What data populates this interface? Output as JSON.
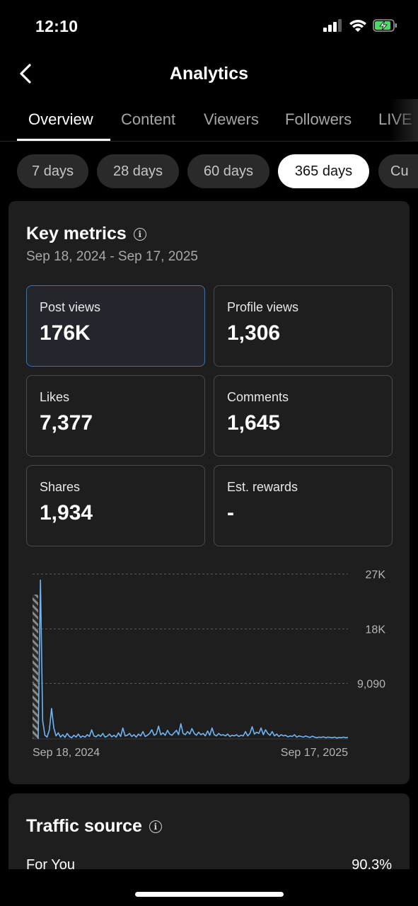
{
  "status_bar": {
    "time": "12:10"
  },
  "header": {
    "title": "Analytics"
  },
  "tabs": [
    {
      "label": "Overview",
      "active": true
    },
    {
      "label": "Content",
      "active": false
    },
    {
      "label": "Viewers",
      "active": false
    },
    {
      "label": "Followers",
      "active": false
    },
    {
      "label": "LIVE",
      "active": false
    }
  ],
  "ranges": [
    {
      "label": "7 days",
      "active": false
    },
    {
      "label": "28 days",
      "active": false
    },
    {
      "label": "60 days",
      "active": false
    },
    {
      "label": "365 days",
      "active": true
    },
    {
      "label": "Cu",
      "active": false
    }
  ],
  "key_metrics": {
    "title": "Key metrics",
    "date_range": "Sep 18, 2024 - Sep 17, 2025",
    "metrics": [
      {
        "label": "Post views",
        "value": "176K",
        "selected": true
      },
      {
        "label": "Profile views",
        "value": "1,306",
        "selected": false
      },
      {
        "label": "Likes",
        "value": "7,377",
        "selected": false
      },
      {
        "label": "Comments",
        "value": "1,645",
        "selected": false
      },
      {
        "label": "Shares",
        "value": "1,934",
        "selected": false
      },
      {
        "label": "Est. rewards",
        "value": "-",
        "selected": false
      }
    ]
  },
  "chart_data": {
    "type": "line",
    "series": [
      {
        "values": [
          0,
          26000,
          3000,
          600,
          300,
          1500,
          5000,
          1800,
          500,
          1000,
          300,
          700,
          250,
          900,
          400,
          200,
          600,
          300,
          800,
          250,
          500,
          300,
          700,
          400,
          1500,
          500,
          350,
          700,
          400,
          900,
          300,
          450,
          800,
          350,
          600,
          300,
          1000,
          400,
          1800,
          500,
          600,
          900,
          400,
          700,
          300,
          800,
          500,
          1200,
          400,
          600,
          900,
          1500,
          600,
          800,
          2100,
          700,
          1000,
          600,
          1400,
          800,
          600,
          1000,
          1400,
          700,
          2500,
          900,
          700,
          1200,
          800,
          1700,
          900,
          600,
          1100,
          700,
          900,
          500,
          1300,
          600,
          1800,
          700,
          500,
          900,
          600,
          700,
          500,
          800,
          400,
          600,
          500,
          700,
          400,
          600,
          500,
          1200,
          500,
          900,
          2000,
          800,
          1100,
          900,
          1800,
          700,
          1500,
          900,
          600,
          1200,
          500,
          800,
          400,
          700,
          500,
          600,
          350,
          500,
          400,
          700,
          300,
          500,
          400,
          300,
          500,
          350,
          250,
          450,
          300,
          200,
          300,
          250,
          350,
          200,
          300,
          250,
          200,
          300,
          150,
          250,
          200,
          300,
          200,
          250
        ]
      }
    ],
    "x_tick_labels": [
      "Sep 18, 2024",
      "Sep 17, 2025"
    ],
    "y_tick_labels": [
      "9,090",
      "18K",
      "27K"
    ],
    "y_ticks": [
      9090,
      18000,
      27000
    ],
    "ylim": [
      0,
      27000
    ],
    "grid": true,
    "colors": {
      "line": "#6fb4f5",
      "grid": "#5a5a5a",
      "axis_text": "#b5b5b5"
    }
  },
  "traffic_source": {
    "title": "Traffic source",
    "rows": [
      {
        "label": "For You",
        "value": "90.3%"
      }
    ]
  }
}
